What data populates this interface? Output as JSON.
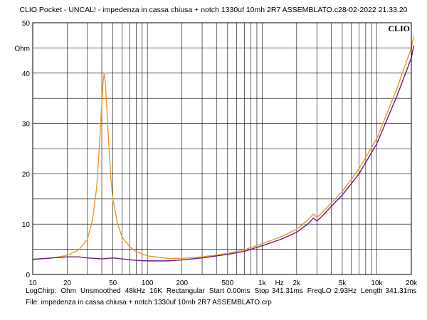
{
  "title": "CLIO Pocket - UNCAL! - impedenza in cassa chiusa + notch 1330uf 10mh 2R7 ASSEMBLATO.c28-02-2022 21.33.20",
  "logo": "CLIO",
  "info": {
    "mode": "LogChirp:",
    "unit": "Ohm",
    "smoothing": "Unsmoothed",
    "rate": "48kHz",
    "size": "16K",
    "window": "Rectangular",
    "start": "Start 0.00ms",
    "stop": "Stop 341.31ms",
    "freqlo": "FreqLO 2.93Hz",
    "length": "Length 341.31ms"
  },
  "file": "File: impedenza in cassa chiusa + notch 1330uf 10mh 2R7 ASSEMBLATO.crp",
  "chart_data": {
    "type": "line",
    "xlabel": "Hz",
    "ylabel": "Ohm",
    "x_scale": "log",
    "xlim": [
      10,
      20000
    ],
    "ylim": [
      0,
      50
    ],
    "grid": true,
    "x_ticks": [
      {
        "value": 10,
        "label": "10"
      },
      {
        "value": 20,
        "label": "20"
      },
      {
        "value": 50,
        "label": "50"
      },
      {
        "value": 100,
        "label": "100"
      },
      {
        "value": 200,
        "label": "200"
      },
      {
        "value": 500,
        "label": "500"
      },
      {
        "value": 1000,
        "label": "1k"
      },
      {
        "value": 2000,
        "label": "2k"
      },
      {
        "value": 5000,
        "label": "5k"
      },
      {
        "value": 10000,
        "label": "10k"
      },
      {
        "value": 20000,
        "label": "20k"
      }
    ],
    "y_ticks": [
      {
        "value": 0,
        "label": "0"
      },
      {
        "value": 10,
        "label": "10"
      },
      {
        "value": 20,
        "label": "20"
      },
      {
        "value": 30,
        "label": "30"
      },
      {
        "value": 40,
        "label": "40"
      },
      {
        "value": 50,
        "label": "50"
      }
    ],
    "series": [
      {
        "color": "#f0962a",
        "points": [
          [
            10,
            3.0
          ],
          [
            15,
            3.3
          ],
          [
            20,
            3.8
          ],
          [
            25,
            4.8
          ],
          [
            30,
            7.0
          ],
          [
            33,
            10.5
          ],
          [
            36,
            17.0
          ],
          [
            38,
            25.0
          ],
          [
            40,
            34.0
          ],
          [
            41,
            38.0
          ],
          [
            42,
            40.0
          ],
          [
            43,
            38.0
          ],
          [
            44,
            34.0
          ],
          [
            46,
            26.0
          ],
          [
            48,
            19.0
          ],
          [
            50,
            15.0
          ],
          [
            55,
            10.0
          ],
          [
            60,
            7.5
          ],
          [
            70,
            5.5
          ],
          [
            80,
            4.5
          ],
          [
            100,
            3.7
          ],
          [
            150,
            3.2
          ],
          [
            200,
            3.2
          ],
          [
            300,
            3.5
          ],
          [
            500,
            4.2
          ],
          [
            700,
            4.9
          ],
          [
            1000,
            6.1
          ],
          [
            1500,
            7.6
          ],
          [
            2000,
            9.0
          ],
          [
            2500,
            10.8
          ],
          [
            2800,
            12.0
          ],
          [
            3000,
            11.4
          ],
          [
            3300,
            12.2
          ],
          [
            5000,
            16.5
          ],
          [
            7000,
            21.0
          ],
          [
            10000,
            27.0
          ],
          [
            15000,
            37.0
          ],
          [
            20000,
            45.0
          ],
          [
            21000,
            47.5
          ]
        ]
      },
      {
        "color": "#6a1a87",
        "points": [
          [
            10,
            3.0
          ],
          [
            15,
            3.3
          ],
          [
            20,
            3.5
          ],
          [
            25,
            3.5
          ],
          [
            30,
            3.3
          ],
          [
            40,
            3.1
          ],
          [
            50,
            3.3
          ],
          [
            60,
            3.1
          ],
          [
            80,
            2.8
          ],
          [
            100,
            2.7
          ],
          [
            150,
            2.7
          ],
          [
            200,
            2.9
          ],
          [
            300,
            3.3
          ],
          [
            500,
            4.0
          ],
          [
            700,
            4.6
          ],
          [
            1000,
            5.7
          ],
          [
            1500,
            7.1
          ],
          [
            2000,
            8.4
          ],
          [
            2500,
            10.0
          ],
          [
            2800,
            11.2
          ],
          [
            3000,
            10.6
          ],
          [
            3300,
            11.5
          ],
          [
            5000,
            15.8
          ],
          [
            7000,
            20.0
          ],
          [
            10000,
            26.0
          ],
          [
            15000,
            35.5
          ],
          [
            20000,
            43.0
          ],
          [
            21000,
            45.5
          ]
        ]
      }
    ]
  }
}
